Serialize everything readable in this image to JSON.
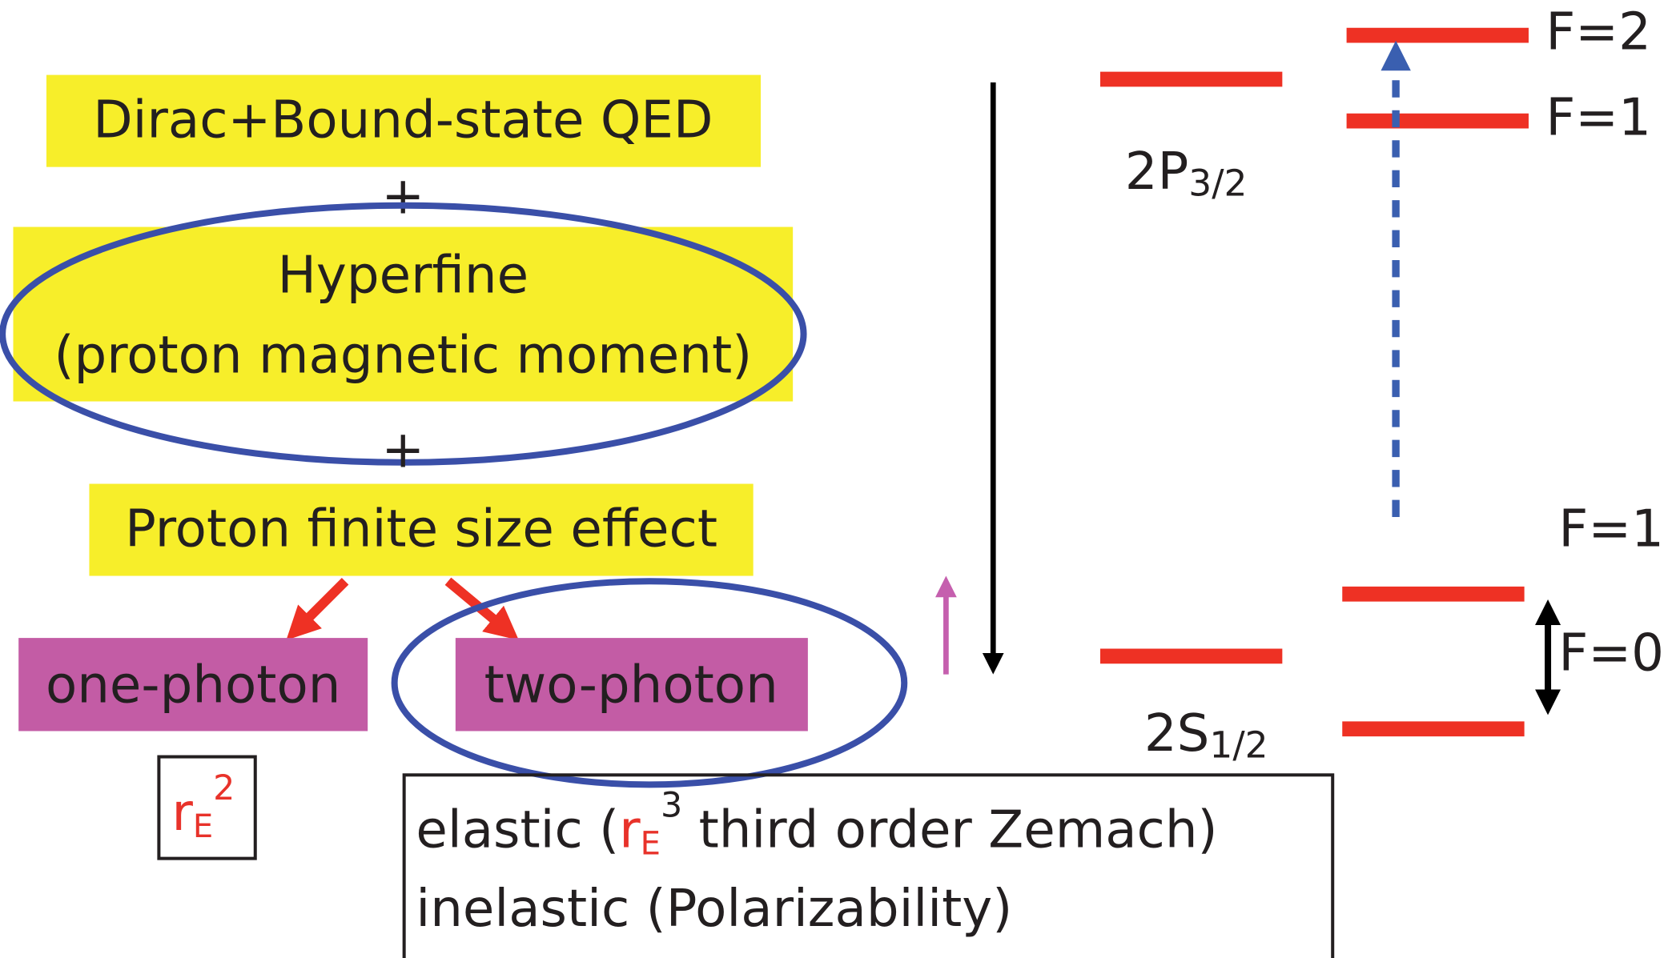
{
  "contributions": {
    "qed": "Dirac+Bound-state QED",
    "plus_1": "+",
    "hyperfine": {
      "line_1": "Hyperfine",
      "line_2": "(proton magnetic moment)"
    },
    "plus_2": "+",
    "finite_size": "Proton finite size effect",
    "one_photon": "one-photon",
    "two_photon": "two-photon"
  },
  "one_photon_term": {
    "base": "r",
    "sub": "E",
    "sup": "2"
  },
  "two_photon_terms": {
    "elastic": {
      "before": "elastic (",
      "base": "r",
      "sub": "E",
      "sup": "3",
      "after": " third order Zemach)"
    },
    "inelastic": "inelastic (Polarizability)"
  },
  "levels": {
    "p32": {
      "main": "2P",
      "sub": "3/2",
      "upper": "F=2",
      "lower": "F=1"
    },
    "s12": {
      "main": "2S",
      "sub": "1/2",
      "upper": "F=1",
      "lower": "F=0"
    }
  }
}
